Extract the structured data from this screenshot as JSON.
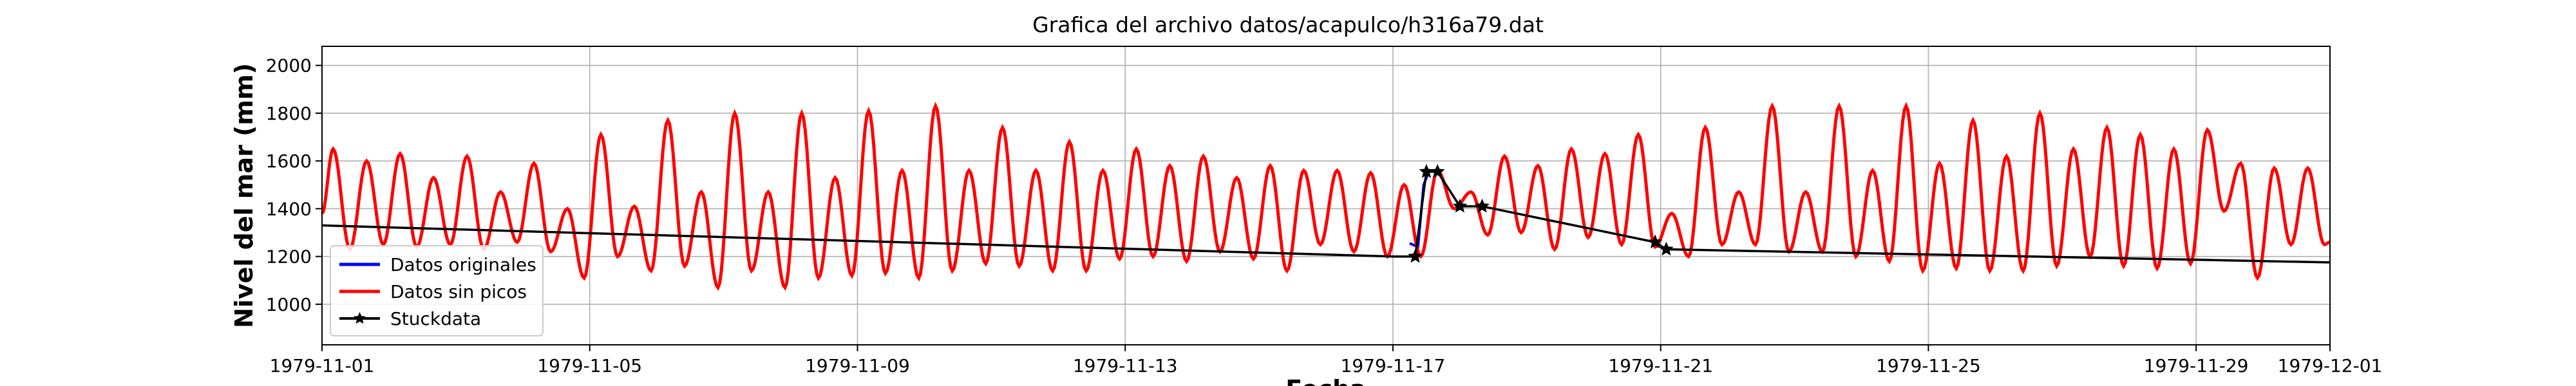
{
  "chart_data": {
    "type": "line",
    "title": "Grafica del archivo datos/acapulco/h316a79.dat",
    "xlabel": "Fecha",
    "ylabel": "Nivel del mar (mm)",
    "xlim": [
      "1979-11-01",
      "1979-12-01"
    ],
    "ylim": [
      830,
      2080
    ],
    "yticks": [
      1000,
      1200,
      1400,
      1600,
      1800,
      2000
    ],
    "xticks": [
      "1979-11-01",
      "1979-11-05",
      "1979-11-09",
      "1979-11-13",
      "1979-11-17",
      "1979-11-21",
      "1979-11-25",
      "1979-11-29",
      "1979-12-01"
    ],
    "grid": true,
    "legend_position": "lower left",
    "colors": {
      "original": "#0000ff",
      "sin_picos": "#ff0000",
      "stuck": "#000000"
    },
    "series": [
      {
        "name": "Datos originales",
        "style": "line",
        "color": "#0000ff"
      },
      {
        "name": "Datos sin picos",
        "style": "line",
        "color": "#ff0000"
      },
      {
        "name": "Stuckdata",
        "style": "line-star",
        "color": "#000000",
        "x": [
          "1979-11-01T00:00",
          "1979-11-17T00:00",
          "1979-11-17T08:00",
          "1979-11-17T12:00",
          "1979-11-17T16:00",
          "1979-11-18T00:00",
          "1979-11-18T08:00",
          "1979-11-20T22:00",
          "1979-11-21T02:00",
          "1979-12-01T00:00"
        ],
        "y": [
          1330,
          1200,
          1200,
          1555,
          1555,
          1410,
          1410,
          1260,
          1230,
          1175
        ],
        "markers": [
          "1979-11-17T08:00",
          "1979-11-17T12:00",
          "1979-11-17T16:00",
          "1979-11-18T00:00",
          "1979-11-18T08:00",
          "1979-11-20T22:00",
          "1979-11-21T02:00"
        ]
      }
    ],
    "tide_daily": [
      {
        "date": "1979-11-01",
        "hi1": 1650,
        "lo1": 1230,
        "hi2": 1600,
        "lo2": 1250
      },
      {
        "date": "1979-11-02",
        "hi1": 1630,
        "lo1": 1240,
        "hi2": 1530,
        "lo2": 1250
      },
      {
        "date": "1979-11-03",
        "hi1": 1620,
        "lo1": 1230,
        "hi2": 1470,
        "lo2": 1260
      },
      {
        "date": "1979-11-04",
        "hi1": 1590,
        "lo1": 1220,
        "hi2": 1400,
        "lo2": 1110
      },
      {
        "date": "1979-11-05",
        "hi1": 1710,
        "lo1": 1200,
        "hi2": 1410,
        "lo2": 1140
      },
      {
        "date": "1979-11-06",
        "hi1": 1770,
        "lo1": 1160,
        "hi2": 1470,
        "lo2": 1070
      },
      {
        "date": "1979-11-07",
        "hi1": 1800,
        "lo1": 1140,
        "hi2": 1470,
        "lo2": 1070
      },
      {
        "date": "1979-11-08",
        "hi1": 1800,
        "lo1": 1110,
        "hi2": 1530,
        "lo2": 1120
      },
      {
        "date": "1979-11-09",
        "hi1": 1810,
        "lo1": 1130,
        "hi2": 1560,
        "lo2": 1110
      },
      {
        "date": "1979-11-10",
        "hi1": 1830,
        "lo1": 1140,
        "hi2": 1560,
        "lo2": 1170
      },
      {
        "date": "1979-11-11",
        "hi1": 1740,
        "lo1": 1160,
        "hi2": 1560,
        "lo2": 1140
      },
      {
        "date": "1979-11-12",
        "hi1": 1680,
        "lo1": 1140,
        "hi2": 1560,
        "lo2": 1190
      },
      {
        "date": "1979-11-13",
        "hi1": 1650,
        "lo1": 1200,
        "hi2": 1580,
        "lo2": 1180
      },
      {
        "date": "1979-11-14",
        "hi1": 1620,
        "lo1": 1220,
        "hi2": 1530,
        "lo2": 1190
      },
      {
        "date": "1979-11-15",
        "hi1": 1580,
        "lo1": 1140,
        "hi2": 1560,
        "lo2": 1250
      },
      {
        "date": "1979-11-16",
        "hi1": 1560,
        "lo1": 1220,
        "hi2": 1550,
        "lo2": 1200
      },
      {
        "date": "1979-11-17",
        "hi1": 1500,
        "lo1": 1200,
        "hi2": 1560,
        "lo2": 1400
      },
      {
        "date": "1979-11-18",
        "hi1": 1470,
        "lo1": 1290,
        "hi2": 1620,
        "lo2": 1300
      },
      {
        "date": "1979-11-19",
        "hi1": 1580,
        "lo1": 1230,
        "hi2": 1650,
        "lo2": 1280
      },
      {
        "date": "1979-11-20",
        "hi1": 1630,
        "lo1": 1250,
        "hi2": 1710,
        "lo2": 1240
      },
      {
        "date": "1979-11-21",
        "hi1": 1380,
        "lo1": 1200,
        "hi2": 1740,
        "lo2": 1250
      },
      {
        "date": "1979-11-22",
        "hi1": 1470,
        "lo1": 1250,
        "hi2": 1830,
        "lo2": 1220
      },
      {
        "date": "1979-11-23",
        "hi1": 1470,
        "lo1": 1220,
        "hi2": 1830,
        "lo2": 1200
      },
      {
        "date": "1979-11-24",
        "hi1": 1560,
        "lo1": 1180,
        "hi2": 1830,
        "lo2": 1140
      },
      {
        "date": "1979-11-25",
        "hi1": 1590,
        "lo1": 1150,
        "hi2": 1770,
        "lo2": 1140
      },
      {
        "date": "1979-11-26",
        "hi1": 1620,
        "lo1": 1140,
        "hi2": 1800,
        "lo2": 1160
      },
      {
        "date": "1979-11-27",
        "hi1": 1650,
        "lo1": 1200,
        "hi2": 1740,
        "lo2": 1160
      },
      {
        "date": "1979-11-28",
        "hi1": 1710,
        "lo1": 1150,
        "hi2": 1650,
        "lo2": 1170
      },
      {
        "date": "1979-11-29",
        "hi1": 1730,
        "lo1": 1390,
        "hi2": 1590,
        "lo2": 1110
      },
      {
        "date": "1979-11-30",
        "hi1": 1570,
        "lo1": 1250,
        "hi2": 1570,
        "lo2": 1250
      }
    ]
  }
}
